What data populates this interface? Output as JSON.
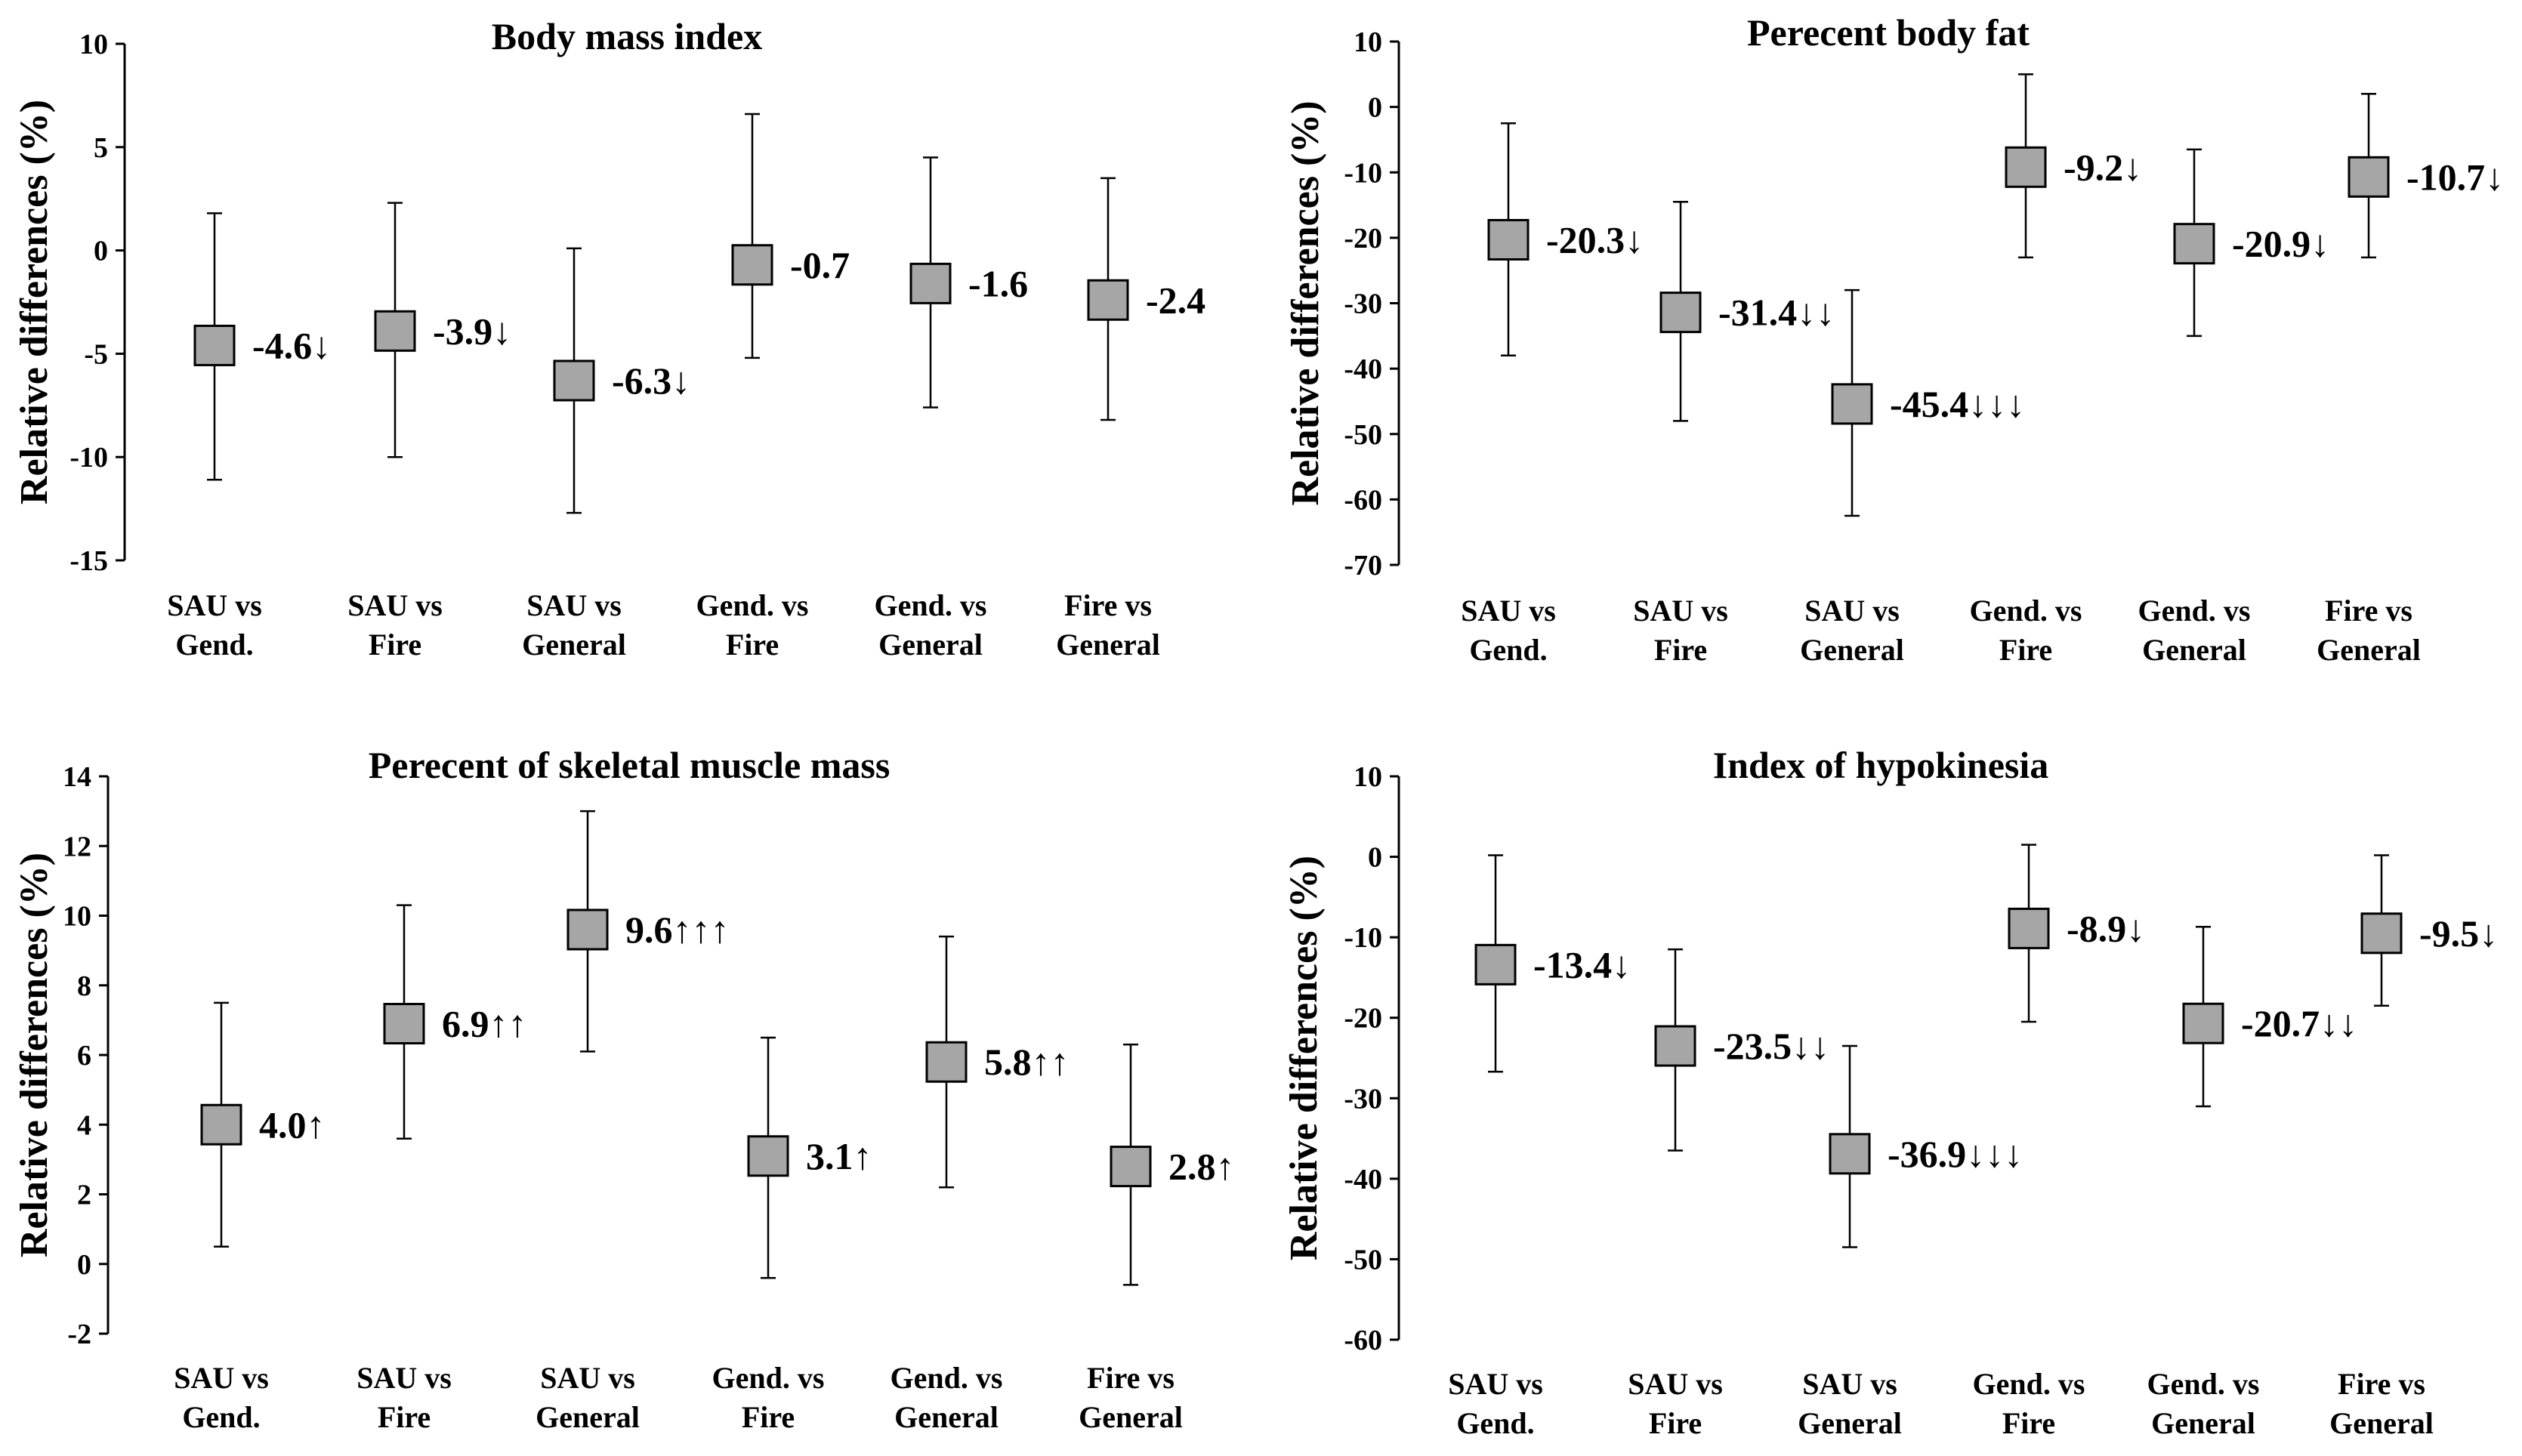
{
  "chart_data": [
    {
      "type": "scatter",
      "title": "Body mass index",
      "ylabel": "Relative differences (%)",
      "ylim": [
        -15,
        10
      ],
      "yticks": [
        10,
        5,
        0,
        -5,
        -10,
        -15
      ],
      "categories": [
        [
          "SAU vs",
          "Gend."
        ],
        [
          "SAU vs",
          "Fire"
        ],
        [
          "SAU vs",
          "General"
        ],
        [
          "Gend. vs",
          "Fire"
        ],
        [
          "Gend. vs",
          "General"
        ],
        [
          "Fire vs",
          "General"
        ]
      ],
      "values": [
        -4.6,
        -3.9,
        -6.3,
        -0.7,
        -1.6,
        -2.4
      ],
      "error_upper": [
        1.8,
        2.3,
        0.1,
        6.6,
        4.5,
        3.5
      ],
      "error_lower": [
        -11.1,
        -10.0,
        -12.7,
        -5.2,
        -7.6,
        -8.2
      ],
      "point_labels": [
        "-4.6↓",
        "-3.9↓",
        "-6.3↓",
        "-0.7",
        "-1.6",
        "-2.4"
      ],
      "grid": false
    },
    {
      "type": "scatter",
      "title": "Perecent body fat",
      "ylabel": "Relative differences (%)",
      "ylim": [
        -70,
        10
      ],
      "yticks": [
        10,
        0,
        -10,
        -20,
        -30,
        -40,
        -50,
        -60,
        -70
      ],
      "categories": [
        [
          "SAU vs",
          "Gend."
        ],
        [
          "SAU vs",
          "Fire"
        ],
        [
          "SAU vs",
          "General"
        ],
        [
          "Gend. vs",
          "Fire"
        ],
        [
          "Gend. vs",
          "General"
        ],
        [
          "Fire vs",
          "General"
        ]
      ],
      "values": [
        -20.3,
        -31.4,
        -45.4,
        -9.2,
        -20.9,
        -10.7
      ],
      "error_upper": [
        -2.5,
        -14.5,
        -28.0,
        5.0,
        -6.5,
        2.0
      ],
      "error_lower": [
        -38.0,
        -48.0,
        -62.5,
        -23.0,
        -35.0,
        -23.0
      ],
      "point_labels": [
        "-20.3↓",
        "-31.4↓↓",
        "-45.4↓↓↓",
        "-9.2↓",
        "-20.9↓",
        "-10.7↓"
      ],
      "grid": false
    },
    {
      "type": "scatter",
      "title": "Perecent of skeletal muscle mass",
      "ylabel": "Relative differences (%)",
      "ylim": [
        -2,
        14
      ],
      "yticks": [
        14,
        12,
        10,
        8,
        6,
        4,
        2,
        0,
        -2
      ],
      "categories": [
        [
          "SAU vs",
          "Gend."
        ],
        [
          "SAU vs",
          "Fire"
        ],
        [
          "SAU vs",
          "General"
        ],
        [
          "Gend. vs",
          "Fire"
        ],
        [
          "Gend. vs",
          "General"
        ],
        [
          "Fire vs",
          "General"
        ]
      ],
      "values": [
        4.0,
        6.9,
        9.6,
        3.1,
        5.8,
        2.8
      ],
      "error_upper": [
        7.5,
        10.3,
        13.0,
        6.5,
        9.4,
        6.3
      ],
      "error_lower": [
        0.5,
        3.6,
        6.1,
        -0.4,
        2.2,
        -0.6
      ],
      "point_labels": [
        "4.0↑",
        "6.9↑↑",
        "9.6↑↑↑",
        "3.1↑",
        "5.8↑↑",
        "2.8↑"
      ],
      "grid": false
    },
    {
      "type": "scatter",
      "title": "Index of hypokinesia",
      "ylabel": "Relative differences (%)",
      "ylim": [
        -60,
        10
      ],
      "yticks": [
        10,
        0,
        -10,
        -20,
        -30,
        -40,
        -50,
        -60
      ],
      "categories": [
        [
          "SAU vs",
          "Gend."
        ],
        [
          "SAU vs",
          "Fire"
        ],
        [
          "SAU vs",
          "General"
        ],
        [
          "Gend. vs",
          "Fire"
        ],
        [
          "Gend. vs",
          "General"
        ],
        [
          "Fire vs",
          "General"
        ]
      ],
      "values": [
        -13.4,
        -23.5,
        -36.9,
        -8.9,
        -20.7,
        -9.5
      ],
      "error_upper": [
        0.2,
        -11.5,
        -23.5,
        1.5,
        -8.7,
        0.2
      ],
      "error_lower": [
        -26.7,
        -36.5,
        -48.5,
        -20.5,
        -31.0,
        -18.5
      ],
      "point_labels": [
        "-13.4↓",
        "-23.5↓↓",
        "-36.9↓↓↓",
        "-8.9↓",
        "-20.7↓↓",
        "-9.5↓"
      ],
      "grid": false
    }
  ]
}
